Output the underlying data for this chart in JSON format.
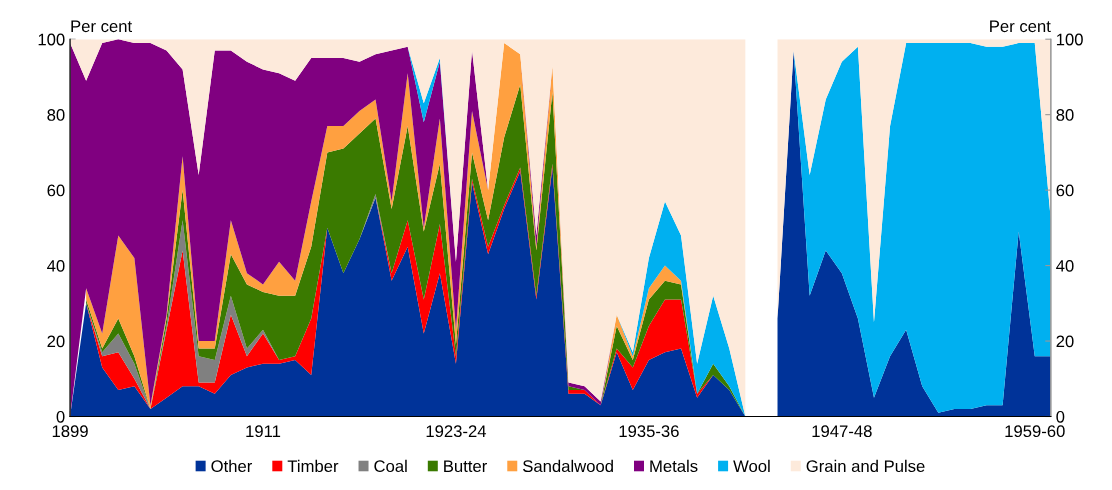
{
  "chart_data": {
    "type": "area",
    "stacked": true,
    "ylabel": "Per cent",
    "y2label": "Per cent",
    "categories": [
      "1899",
      null,
      null,
      null,
      null,
      null,
      null,
      null,
      null,
      null,
      null,
      null,
      "1911",
      null,
      null,
      null,
      null,
      null,
      null,
      null,
      null,
      null,
      null,
      null,
      "1923-24",
      null,
      null,
      null,
      null,
      null,
      null,
      null,
      null,
      null,
      null,
      null,
      "1935-36",
      null,
      null,
      null,
      null,
      null,
      null,
      null,
      null,
      null,
      null,
      null,
      "1947-48",
      null,
      null,
      null,
      null,
      null,
      null,
      null,
      null,
      null,
      null,
      null,
      "1959-60",
      null
    ],
    "ylim": [
      0,
      100
    ],
    "yticks": [
      0,
      20,
      40,
      60,
      80,
      100
    ],
    "y2lim": [
      0,
      100
    ],
    "y2ticks": [
      0,
      20,
      40,
      60,
      80,
      100
    ],
    "grid": false,
    "legend": "bottom",
    "series": [
      {
        "name": "Other",
        "color": "#003399",
        "values": [
          0,
          30,
          13,
          7,
          8,
          2,
          5,
          8,
          8,
          6,
          11,
          13,
          14,
          14,
          15,
          11,
          50,
          38,
          47,
          58,
          36,
          45,
          22,
          38,
          14,
          62,
          43,
          55,
          65,
          31,
          66,
          6,
          6,
          3,
          17,
          7,
          15,
          17,
          18,
          5,
          11,
          7,
          0,
          null,
          26,
          97,
          32,
          44,
          38,
          26,
          5,
          16,
          23,
          8,
          1,
          2,
          2,
          3,
          3,
          49,
          16,
          16
        ]
      },
      {
        "name": "Timber",
        "color": "#ff0000",
        "values": [
          null,
          0,
          3,
          10,
          2,
          0,
          18,
          36,
          1,
          3,
          16,
          3,
          8,
          1,
          1,
          15,
          0,
          null,
          null,
          0,
          2,
          7,
          9,
          13,
          2,
          1,
          2,
          1,
          1,
          1,
          1,
          1,
          1,
          0,
          1,
          6,
          9,
          14,
          13,
          1,
          0,
          null,
          null,
          null,
          null,
          null,
          null,
          null,
          null,
          null,
          null,
          null,
          null,
          null,
          null,
          null,
          null,
          null,
          null,
          null,
          null,
          null
        ]
      },
      {
        "name": "Coal",
        "color": "#808080",
        "values": [
          null,
          0,
          1,
          5,
          4,
          0,
          1,
          8,
          7,
          6,
          5,
          2,
          1,
          0,
          null,
          null,
          null,
          null,
          0,
          1,
          0,
          null,
          null,
          null,
          null,
          null,
          null,
          null,
          null,
          null,
          null,
          null,
          null,
          null,
          null,
          null,
          null,
          null,
          null,
          null,
          null,
          null,
          null,
          null,
          null,
          null,
          null,
          null,
          null,
          null,
          null,
          null,
          null,
          null,
          null,
          null,
          null,
          null,
          null,
          null,
          null,
          null
        ]
      },
      {
        "name": "Butter",
        "color": "#3a7a00",
        "values": [
          null,
          1,
          1,
          4,
          2,
          0,
          2,
          8,
          2,
          3,
          11,
          17,
          10,
          17,
          16,
          19,
          20,
          33,
          28,
          20,
          17,
          25,
          18,
          16,
          3,
          7,
          7,
          18,
          22,
          12,
          19,
          1,
          0,
          0,
          6,
          2,
          7,
          5,
          4,
          0,
          3,
          1,
          0,
          null,
          null,
          null,
          null,
          null,
          null,
          null,
          null,
          null,
          null,
          null,
          null,
          null,
          null,
          null,
          null,
          null,
          null,
          null
        ]
      },
      {
        "name": "Sandalwood",
        "color": "#ffa040",
        "values": [
          null,
          3,
          4,
          22,
          26,
          1,
          1,
          9,
          2,
          2,
          9,
          3,
          2,
          9,
          4,
          12,
          7,
          6,
          6,
          5,
          2,
          14,
          1,
          12,
          4,
          11,
          8,
          25,
          8,
          1,
          7,
          0,
          null,
          0,
          3,
          1,
          3,
          4,
          1,
          0,
          null,
          null,
          null,
          null,
          null,
          null,
          null,
          null,
          null,
          null,
          null,
          null,
          null,
          null,
          null,
          null,
          null,
          null,
          null,
          null,
          null,
          null
        ]
      },
      {
        "name": "Metals",
        "color": "#800080",
        "values": [
          99,
          55,
          77,
          52,
          57,
          96,
          70,
          23,
          44,
          77,
          45,
          56,
          57,
          50,
          53,
          38,
          18,
          18,
          13,
          12,
          40,
          7,
          28,
          15,
          18,
          16,
          0,
          null,
          0,
          3,
          0,
          1,
          1,
          1,
          0,
          null,
          null,
          null,
          null,
          null,
          null,
          null,
          null,
          null,
          null,
          null,
          null,
          null,
          null,
          null,
          null,
          null,
          null,
          null,
          null,
          null,
          null,
          null,
          null,
          null,
          null,
          null
        ]
      },
      {
        "name": "Wool",
        "color": "#00b0f0",
        "values": [
          null,
          null,
          null,
          null,
          null,
          null,
          null,
          null,
          null,
          null,
          null,
          null,
          null,
          null,
          null,
          null,
          null,
          null,
          null,
          null,
          null,
          0,
          5,
          1,
          0,
          null,
          null,
          null,
          null,
          null,
          null,
          null,
          null,
          null,
          0,
          1,
          8,
          17,
          12,
          8,
          18,
          10,
          0,
          null,
          null,
          0,
          32,
          40,
          56,
          72,
          20,
          61,
          76,
          91,
          98,
          97,
          97,
          95,
          95,
          50,
          83,
          36
        ]
      },
      {
        "name": "Grain and Pulse",
        "color": "#fdeadb",
        "values": [
          1,
          11,
          1,
          0,
          1,
          1,
          3,
          8,
          36,
          3,
          3,
          6,
          8,
          9,
          11,
          5,
          5,
          5,
          6,
          4,
          3,
          2,
          17,
          5,
          59,
          3,
          40,
          1,
          4,
          52,
          7,
          91,
          92,
          96,
          73,
          83,
          58,
          43,
          52,
          86,
          68,
          82,
          100,
          null,
          74,
          3,
          36,
          16,
          6,
          2,
          75,
          23,
          1,
          1,
          1,
          1,
          1,
          2,
          2,
          1,
          1,
          48
        ]
      }
    ]
  }
}
